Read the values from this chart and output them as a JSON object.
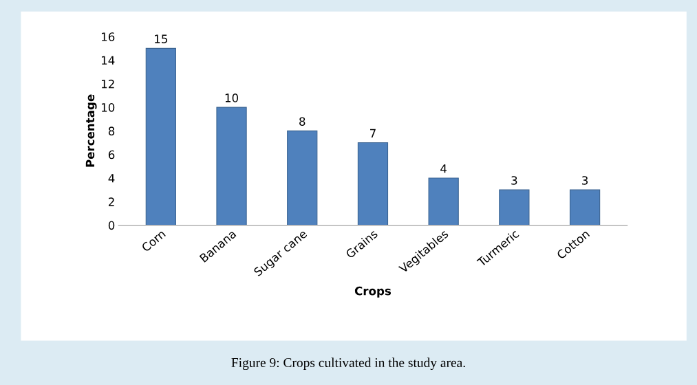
{
  "chart_data": {
    "type": "bar",
    "xlabel": "Crops",
    "ylabel": "Percentage",
    "categories": [
      "Corn",
      "Banana",
      "Sugar cane",
      "Grains",
      "Vegitables",
      "Turmeric",
      "Cotton"
    ],
    "values": [
      15,
      10,
      8,
      7,
      4,
      3,
      3
    ],
    "color": "#4f81bd",
    "ylim": [
      0,
      16
    ],
    "yticks": [
      0,
      2,
      4,
      6,
      8,
      10,
      12,
      14,
      16
    ],
    "grid": false,
    "data_labels": true,
    "annotations": [
      "Figure 9: Crops cultivated in the study area."
    ]
  }
}
